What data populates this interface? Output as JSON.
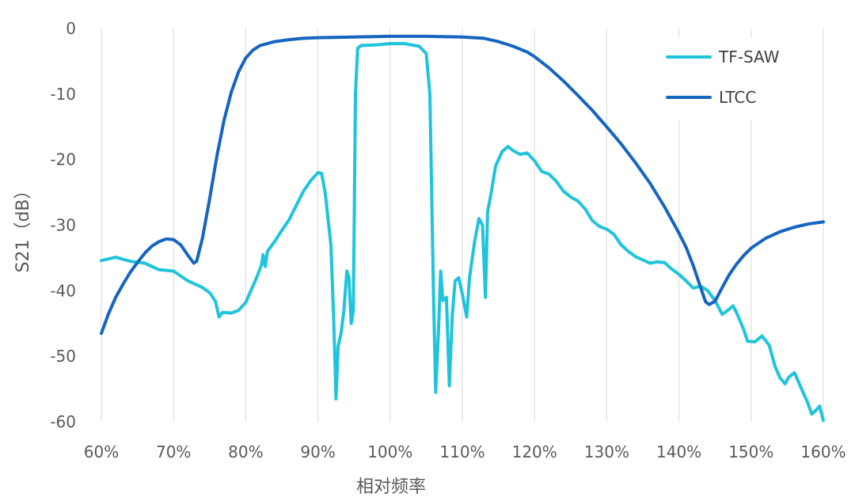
{
  "chart_data": {
    "type": "line",
    "title": "",
    "xlabel": "相对频率",
    "ylabel": "S21（dB）",
    "x_unit": "%",
    "xlim": [
      60,
      160
    ],
    "ylim": [
      -60,
      0
    ],
    "x_ticks": [
      60,
      70,
      80,
      90,
      100,
      110,
      120,
      130,
      140,
      150,
      160
    ],
    "y_ticks": [
      0,
      -10,
      -20,
      -30,
      -40,
      -50,
      -60
    ],
    "x_tick_labels": [
      "60%",
      "70%",
      "80%",
      "90%",
      "100%",
      "110%",
      "120%",
      "130%",
      "140%",
      "150%",
      "160%"
    ],
    "y_tick_labels": [
      "0",
      "-10",
      "-20",
      "-30",
      "-40",
      "-50",
      "-60"
    ],
    "grid": "vertical",
    "legend_position": "top-right",
    "series": [
      {
        "name": "TF-SAW",
        "color": "#1fc4dc",
        "points": [
          [
            60,
            -35.4
          ],
          [
            62,
            -34.9
          ],
          [
            64,
            -35.5
          ],
          [
            66,
            -35.8
          ],
          [
            68,
            -36.8
          ],
          [
            70,
            -37
          ],
          [
            72,
            -38.5
          ],
          [
            74,
            -39.5
          ],
          [
            75,
            -40.3
          ],
          [
            75.8,
            -41.6
          ],
          [
            76.3,
            -44
          ],
          [
            76.8,
            -43.3
          ],
          [
            78,
            -43.4
          ],
          [
            79,
            -43
          ],
          [
            80,
            -41.8
          ],
          [
            81.5,
            -38
          ],
          [
            82.2,
            -36
          ],
          [
            82.4,
            -34.5
          ],
          [
            82.7,
            -36.3
          ],
          [
            83,
            -34
          ],
          [
            84,
            -32.5
          ],
          [
            85,
            -30.8
          ],
          [
            86,
            -29.2
          ],
          [
            87,
            -27
          ],
          [
            88,
            -24.8
          ],
          [
            89,
            -23.2
          ],
          [
            90,
            -22
          ],
          [
            90.5,
            -22.1
          ],
          [
            91,
            -25
          ],
          [
            91.8,
            -33
          ],
          [
            92.2,
            -45
          ],
          [
            92.5,
            -56.5
          ],
          [
            92.8,
            -48.5
          ],
          [
            93.2,
            -46.5
          ],
          [
            93.6,
            -43
          ],
          [
            94,
            -37
          ],
          [
            94.3,
            -38
          ],
          [
            94.6,
            -45
          ],
          [
            94.9,
            -43
          ],
          [
            95.2,
            -10
          ],
          [
            95.5,
            -3
          ],
          [
            96,
            -2.6
          ],
          [
            98,
            -2.5
          ],
          [
            100,
            -2.3
          ],
          [
            102,
            -2.3
          ],
          [
            104,
            -2.7
          ],
          [
            105,
            -3.8
          ],
          [
            105.5,
            -10
          ],
          [
            106,
            -40
          ],
          [
            106.3,
            -55.5
          ],
          [
            106.7,
            -46
          ],
          [
            107,
            -37
          ],
          [
            107.3,
            -41.5
          ],
          [
            107.8,
            -41
          ],
          [
            108.2,
            -54.5
          ],
          [
            108.6,
            -44
          ],
          [
            109,
            -38.5
          ],
          [
            109.5,
            -38
          ],
          [
            110,
            -40.5
          ],
          [
            110.6,
            -44
          ],
          [
            111,
            -38
          ],
          [
            111.7,
            -32.5
          ],
          [
            112.3,
            -29
          ],
          [
            112.8,
            -30
          ],
          [
            113.2,
            -41
          ],
          [
            113.5,
            -28
          ],
          [
            114,
            -25
          ],
          [
            114.6,
            -21
          ],
          [
            115.5,
            -18.8
          ],
          [
            116.3,
            -18
          ],
          [
            117,
            -18.6
          ],
          [
            118,
            -19.2
          ],
          [
            119,
            -19
          ],
          [
            120,
            -20.2
          ],
          [
            121,
            -21.8
          ],
          [
            122,
            -22.2
          ],
          [
            123,
            -23.3
          ],
          [
            124,
            -24.8
          ],
          [
            125,
            -25.7
          ],
          [
            126,
            -26.3
          ],
          [
            127,
            -27.5
          ],
          [
            128,
            -29.3
          ],
          [
            129,
            -30.2
          ],
          [
            130,
            -30.6
          ],
          [
            131,
            -31.4
          ],
          [
            132,
            -33
          ],
          [
            133,
            -34
          ],
          [
            134,
            -34.8
          ],
          [
            135,
            -35.3
          ],
          [
            136,
            -35.8
          ],
          [
            137,
            -35.6
          ],
          [
            138,
            -35.7
          ],
          [
            139,
            -36.7
          ],
          [
            140,
            -37.5
          ],
          [
            141,
            -38.5
          ],
          [
            142,
            -39.6
          ],
          [
            143,
            -39.3
          ],
          [
            144,
            -40
          ],
          [
            145,
            -41.5
          ],
          [
            146,
            -43.6
          ],
          [
            147,
            -42.8
          ],
          [
            147.5,
            -42.3
          ],
          [
            148,
            -43.4
          ],
          [
            149,
            -46
          ],
          [
            149.5,
            -47.7
          ],
          [
            150.5,
            -47.8
          ],
          [
            151.5,
            -46.9
          ],
          [
            152.5,
            -48.3
          ],
          [
            153.3,
            -51.5
          ],
          [
            154,
            -53.3
          ],
          [
            154.7,
            -54.2
          ],
          [
            155.2,
            -53.2
          ],
          [
            156,
            -52.5
          ],
          [
            157,
            -55
          ],
          [
            157.8,
            -57
          ],
          [
            158.4,
            -58.8
          ],
          [
            159,
            -58.2
          ],
          [
            159.5,
            -57.6
          ],
          [
            160,
            -59.8
          ]
        ]
      },
      {
        "name": "LTCC",
        "color": "#1565c0",
        "points": [
          [
            60,
            -46.5
          ],
          [
            61,
            -43.5
          ],
          [
            62,
            -41
          ],
          [
            63,
            -39
          ],
          [
            64,
            -37.2
          ],
          [
            65,
            -35.7
          ],
          [
            66,
            -34.3
          ],
          [
            67,
            -33.2
          ],
          [
            68,
            -32.5
          ],
          [
            69,
            -32.1
          ],
          [
            70,
            -32.2
          ],
          [
            71,
            -33
          ],
          [
            72,
            -34.6
          ],
          [
            72.8,
            -35.8
          ],
          [
            73.2,
            -35.5
          ],
          [
            74,
            -32
          ],
          [
            75,
            -26
          ],
          [
            76,
            -19.5
          ],
          [
            77,
            -14
          ],
          [
            78,
            -9.7
          ],
          [
            79,
            -6.6
          ],
          [
            80,
            -4.5
          ],
          [
            81,
            -3.3
          ],
          [
            82,
            -2.6
          ],
          [
            84,
            -2
          ],
          [
            86,
            -1.7
          ],
          [
            88,
            -1.5
          ],
          [
            90,
            -1.4
          ],
          [
            95,
            -1.3
          ],
          [
            100,
            -1.2
          ],
          [
            105,
            -1.2
          ],
          [
            110,
            -1.3
          ],
          [
            113,
            -1.5
          ],
          [
            115,
            -2
          ],
          [
            117,
            -2.7
          ],
          [
            119,
            -3.6
          ],
          [
            120,
            -4.3
          ],
          [
            122,
            -6
          ],
          [
            124,
            -8
          ],
          [
            126,
            -10.2
          ],
          [
            128,
            -12.5
          ],
          [
            130,
            -15
          ],
          [
            132,
            -17.6
          ],
          [
            134,
            -20.5
          ],
          [
            136,
            -23.6
          ],
          [
            138,
            -27.2
          ],
          [
            140,
            -31.2
          ],
          [
            141,
            -33.4
          ],
          [
            142,
            -36.2
          ],
          [
            143,
            -39.5
          ],
          [
            143.7,
            -41.7
          ],
          [
            144.2,
            -42.1
          ],
          [
            145,
            -41.6
          ],
          [
            146,
            -39.5
          ],
          [
            147,
            -37.5
          ],
          [
            148,
            -35.9
          ],
          [
            149,
            -34.6
          ],
          [
            150,
            -33.5
          ],
          [
            152,
            -32
          ],
          [
            154,
            -31
          ],
          [
            156,
            -30.3
          ],
          [
            158,
            -29.8
          ],
          [
            160,
            -29.5
          ]
        ]
      }
    ]
  }
}
